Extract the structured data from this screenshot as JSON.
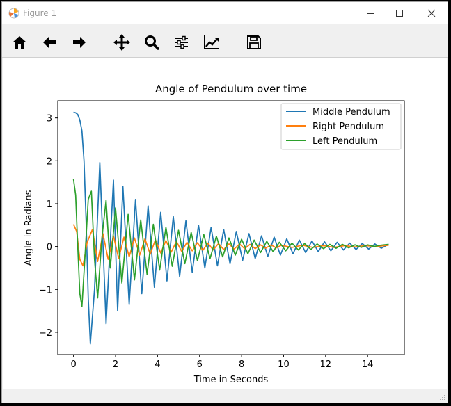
{
  "window": {
    "title": "Figure 1"
  },
  "toolbar": {
    "items": [
      "home-icon",
      "back-arrow-icon",
      "forward-arrow-icon",
      "pan-icon",
      "zoom-icon",
      "subplots-icon",
      "customize-icon",
      "save-icon"
    ]
  },
  "colors": {
    "middle": "#1f77b4",
    "right": "#ff7f0e",
    "left": "#2ca02c"
  },
  "chart_data": {
    "type": "line",
    "title": "Angle of Pendulum over time",
    "xlabel": "Time in Seconds",
    "ylabel": "Angle in Radians",
    "xlim": [
      -0.75,
      15.75
    ],
    "ylim": [
      -2.52,
      3.4
    ],
    "xticks": [
      0,
      2,
      4,
      6,
      8,
      10,
      12,
      14
    ],
    "xtick_labels": [
      "0",
      "2",
      "4",
      "6",
      "8",
      "10",
      "12",
      "14"
    ],
    "yticks": [
      -2,
      -1,
      0,
      1,
      2,
      3
    ],
    "ytick_labels": [
      "−2",
      "−1",
      "0",
      "1",
      "2",
      "3"
    ],
    "grid": false,
    "legend_position": "top-right",
    "series": [
      {
        "name": "Middle Pendulum",
        "color": "#1f77b4",
        "x": [
          0,
          0.1,
          0.2,
          0.3,
          0.4,
          0.5,
          0.6,
          0.7,
          0.8,
          1.0,
          1.25,
          1.55,
          1.9,
          2.1,
          2.35,
          2.65,
          2.95,
          3.25,
          3.55,
          3.85,
          4.15,
          4.45,
          4.75,
          5.05,
          5.35,
          5.65,
          5.95,
          6.25,
          6.55,
          6.85,
          7.15,
          7.45,
          7.75,
          8.05,
          8.35,
          8.65,
          8.95,
          9.25,
          9.55,
          9.85,
          10.15,
          10.45,
          10.75,
          11.05,
          11.35,
          11.65,
          11.95,
          12.25,
          12.55,
          12.85,
          13.15,
          13.45,
          13.75,
          14.05,
          14.35,
          14.65,
          15.0
        ],
        "y": [
          3.13,
          3.12,
          3.08,
          2.95,
          2.7,
          2.0,
          0.6,
          -1.2,
          -2.27,
          -1.0,
          1.96,
          -1.8,
          1.55,
          -1.5,
          1.4,
          -1.35,
          1.1,
          -1.1,
          0.95,
          -0.95,
          0.8,
          -0.8,
          0.7,
          -0.7,
          0.6,
          -0.6,
          0.5,
          -0.5,
          0.45,
          -0.45,
          0.4,
          -0.4,
          0.35,
          -0.32,
          0.3,
          -0.28,
          0.25,
          -0.23,
          0.22,
          -0.2,
          0.18,
          -0.17,
          0.15,
          -0.14,
          0.13,
          -0.12,
          0.11,
          -0.1,
          0.1,
          -0.08,
          0.08,
          -0.07,
          0.07,
          -0.06,
          0.06,
          -0.04,
          0.05
        ]
      },
      {
        "name": "Right Pendulum",
        "color": "#ff7f0e",
        "x": [
          0,
          0.15,
          0.3,
          0.45,
          0.65,
          0.9,
          1.15,
          1.4,
          1.65,
          1.9,
          2.15,
          2.4,
          2.65,
          2.9,
          3.15,
          3.4,
          3.65,
          3.9,
          4.15,
          4.4,
          4.65,
          4.9,
          5.15,
          5.4,
          5.65,
          5.9,
          6.15,
          6.4,
          6.65,
          6.9,
          7.15,
          7.4,
          7.65,
          7.9,
          8.15,
          8.4,
          8.65,
          8.9,
          9.15,
          9.4,
          9.65,
          9.9,
          10.4,
          10.9,
          11.4,
          11.9,
          12.4,
          12.9,
          13.4,
          13.9,
          14.4,
          15.0
        ],
        "y": [
          0.52,
          0.35,
          -0.3,
          -0.45,
          0.1,
          0.4,
          -0.35,
          0.3,
          -0.3,
          0.25,
          -0.28,
          0.22,
          -0.24,
          0.2,
          -0.2,
          0.18,
          -0.18,
          0.16,
          -0.15,
          0.14,
          -0.13,
          0.12,
          -0.12,
          0.1,
          -0.1,
          0.09,
          -0.09,
          0.08,
          -0.08,
          0.07,
          -0.07,
          0.06,
          -0.06,
          0.06,
          -0.05,
          0.05,
          -0.05,
          0.04,
          -0.04,
          0.04,
          -0.03,
          0.03,
          -0.02,
          0.03,
          -0.02,
          0.02,
          -0.02,
          0.02,
          -0.01,
          0.02,
          0.0,
          0.03
        ]
      },
      {
        "name": "Left Pendulum",
        "color": "#2ca02c",
        "x": [
          0,
          0.1,
          0.2,
          0.3,
          0.4,
          0.55,
          0.7,
          0.85,
          1.0,
          1.15,
          1.35,
          1.55,
          1.75,
          2.0,
          2.3,
          2.6,
          2.9,
          3.2,
          3.5,
          3.8,
          4.1,
          4.4,
          4.7,
          5.0,
          5.3,
          5.6,
          5.9,
          6.2,
          6.5,
          6.8,
          7.1,
          7.4,
          7.7,
          8.0,
          8.3,
          8.6,
          8.9,
          9.2,
          9.5,
          9.8,
          10.1,
          10.4,
          10.7,
          11.0,
          11.3,
          11.6,
          11.9,
          12.2,
          12.5,
          12.8,
          13.1,
          13.4,
          13.7,
          14.0,
          14.3,
          14.6,
          15.0
        ],
        "y": [
          1.57,
          1.2,
          0.0,
          -1.1,
          -1.4,
          -0.2,
          1.1,
          1.29,
          -0.3,
          -1.2,
          0.2,
          1.08,
          -0.5,
          0.9,
          -0.85,
          0.75,
          -0.78,
          0.62,
          -0.65,
          0.52,
          -0.55,
          0.45,
          -0.46,
          0.38,
          -0.4,
          0.33,
          -0.33,
          0.28,
          -0.28,
          0.24,
          -0.24,
          0.2,
          -0.2,
          0.17,
          -0.17,
          0.15,
          -0.14,
          0.12,
          -0.12,
          0.1,
          -0.1,
          0.08,
          -0.08,
          0.07,
          -0.07,
          0.06,
          -0.05,
          0.05,
          -0.04,
          0.05,
          -0.03,
          0.04,
          -0.02,
          0.04,
          0.0,
          0.03,
          0.05
        ]
      }
    ]
  }
}
